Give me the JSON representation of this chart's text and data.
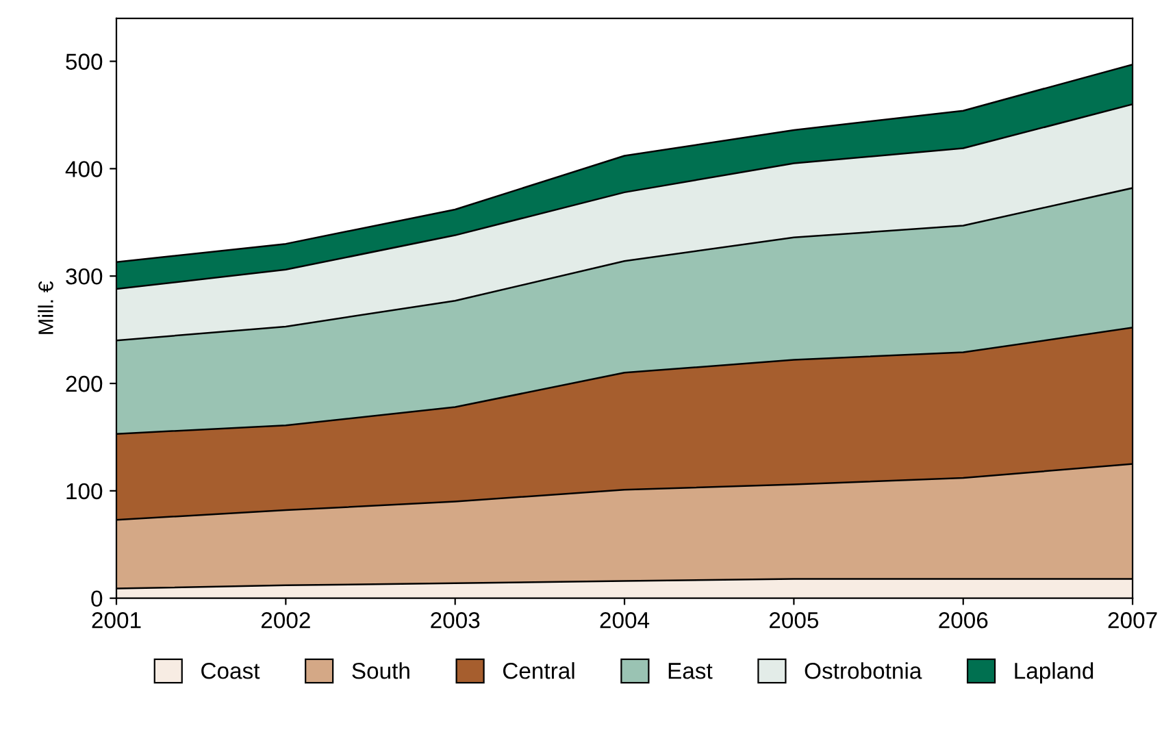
{
  "chart_data": {
    "type": "area",
    "stacked": true,
    "ylabel": "Mill. €",
    "x": [
      2001,
      2002,
      2003,
      2004,
      2005,
      2006,
      2007
    ],
    "series": [
      {
        "name": "Coast",
        "color": "#f7ece3",
        "values": [
          9,
          12,
          14,
          16,
          18,
          18,
          18
        ]
      },
      {
        "name": "South",
        "color": "#d4a886",
        "values": [
          64,
          70,
          76,
          85,
          88,
          94,
          107
        ]
      },
      {
        "name": "Central",
        "color": "#a65e2e",
        "values": [
          80,
          79,
          88,
          109,
          116,
          117,
          127
        ]
      },
      {
        "name": "East",
        "color": "#9ac3b3",
        "values": [
          87,
          92,
          99,
          104,
          114,
          118,
          130
        ]
      },
      {
        "name": "Ostrobotnia",
        "color": "#e3ece8",
        "values": [
          48,
          53,
          61,
          64,
          69,
          72,
          78
        ]
      },
      {
        "name": "Lapland",
        "color": "#007050",
        "values": [
          25,
          24,
          24,
          34,
          31,
          35,
          37
        ]
      }
    ],
    "xlim": [
      2001,
      2007
    ],
    "xticks": [
      2001,
      2002,
      2003,
      2004,
      2005,
      2006,
      2007
    ],
    "ylim": [
      0,
      540
    ],
    "yticks": [
      0,
      100,
      200,
      300,
      400,
      500
    ],
    "legend": "bottom"
  }
}
